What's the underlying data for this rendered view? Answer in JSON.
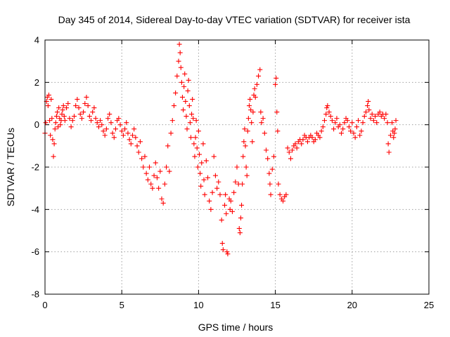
{
  "chart_data": {
    "type": "scatter",
    "title": "Day 345 of 2014, Sidereal Day-to-day VTEC variation (SDTVAR) for receiver ista",
    "xlabel": "GPS time / hours",
    "ylabel": "SDTVAR / TECUs",
    "xlim": [
      0,
      25
    ],
    "ylim": [
      -8,
      4
    ],
    "xticks": [
      0,
      5,
      10,
      15,
      20,
      25
    ],
    "yticks": [
      -8,
      -6,
      -4,
      -2,
      0,
      2,
      4
    ],
    "xtick_labels": [
      "0",
      "5",
      "10",
      "15",
      "20",
      "25"
    ],
    "ytick_labels": [
      "-8",
      "-6",
      "-4",
      "-2",
      "0",
      "2",
      "4"
    ],
    "grid": true,
    "marker": "plus",
    "series": [
      {
        "name": "SDTVAR",
        "color": "#ff0000",
        "points": [
          [
            0.0,
            -0.4
          ],
          [
            0.05,
            0.1
          ],
          [
            0.1,
            1.1
          ],
          [
            0.15,
            1.3
          ],
          [
            0.2,
            0.9
          ],
          [
            0.25,
            1.4
          ],
          [
            0.3,
            0.2
          ],
          [
            0.35,
            -0.5
          ],
          [
            0.4,
            1.2
          ],
          [
            0.45,
            0.3
          ],
          [
            0.5,
            -0.7
          ],
          [
            0.55,
            -1.5
          ],
          [
            0.6,
            -0.9
          ],
          [
            0.65,
            -0.2
          ],
          [
            0.7,
            0.1
          ],
          [
            0.75,
            0.4
          ],
          [
            0.8,
            0.6
          ],
          [
            0.85,
            -0.1
          ],
          [
            0.9,
            0.8
          ],
          [
            0.95,
            0.3
          ],
          [
            1.0,
            0.0
          ],
          [
            1.05,
            0.2
          ],
          [
            1.1,
            0.5
          ],
          [
            1.15,
            0.7
          ],
          [
            1.2,
            0.9
          ],
          [
            1.25,
            0.4
          ],
          [
            1.3,
            0.2
          ],
          [
            1.4,
            0.8
          ],
          [
            1.5,
            1.0
          ],
          [
            1.6,
            0.3
          ],
          [
            1.7,
            -0.1
          ],
          [
            1.8,
            0.2
          ],
          [
            1.9,
            0.4
          ],
          [
            2.0,
            0.9
          ],
          [
            2.1,
            1.2
          ],
          [
            2.2,
            0.8
          ],
          [
            2.3,
            0.5
          ],
          [
            2.4,
            0.3
          ],
          [
            2.5,
            0.6
          ],
          [
            2.6,
            1.0
          ],
          [
            2.7,
            1.3
          ],
          [
            2.8,
            0.9
          ],
          [
            2.9,
            0.4
          ],
          [
            3.0,
            0.2
          ],
          [
            3.1,
            0.6
          ],
          [
            3.2,
            0.8
          ],
          [
            3.3,
            0.3
          ],
          [
            3.4,
            0.1
          ],
          [
            3.5,
            -0.1
          ],
          [
            3.6,
            0.2
          ],
          [
            3.7,
            0.0
          ],
          [
            3.8,
            -0.3
          ],
          [
            3.9,
            -0.5
          ],
          [
            4.0,
            -0.2
          ],
          [
            4.1,
            0.3
          ],
          [
            4.2,
            0.5
          ],
          [
            4.3,
            0.1
          ],
          [
            4.4,
            -0.4
          ],
          [
            4.5,
            -0.6
          ],
          [
            4.6,
            -0.2
          ],
          [
            4.7,
            0.2
          ],
          [
            4.8,
            0.3
          ],
          [
            4.9,
            0.0
          ],
          [
            5.0,
            -0.3
          ],
          [
            5.1,
            -0.5
          ],
          [
            5.2,
            -0.2
          ],
          [
            5.3,
            0.1
          ],
          [
            5.4,
            -0.4
          ],
          [
            5.5,
            -0.7
          ],
          [
            5.6,
            -0.9
          ],
          [
            5.7,
            -0.5
          ],
          [
            5.8,
            -0.2
          ],
          [
            5.9,
            -0.6
          ],
          [
            6.0,
            -1.0
          ],
          [
            6.1,
            -1.3
          ],
          [
            6.2,
            -0.8
          ],
          [
            6.3,
            -1.6
          ],
          [
            6.4,
            -2.0
          ],
          [
            6.5,
            -1.5
          ],
          [
            6.6,
            -2.3
          ],
          [
            6.7,
            -2.6
          ],
          [
            6.8,
            -2.0
          ],
          [
            6.9,
            -2.8
          ],
          [
            7.0,
            -3.0
          ],
          [
            7.1,
            -2.4
          ],
          [
            7.2,
            -1.8
          ],
          [
            7.3,
            -2.5
          ],
          [
            7.4,
            -3.0
          ],
          [
            7.5,
            -2.2
          ],
          [
            7.6,
            -3.5
          ],
          [
            7.7,
            -3.7
          ],
          [
            7.8,
            -2.8
          ],
          [
            7.9,
            -2.0
          ],
          [
            8.0,
            -1.0
          ],
          [
            8.1,
            -2.2
          ],
          [
            8.2,
            -0.4
          ],
          [
            8.3,
            0.2
          ],
          [
            8.4,
            0.9
          ],
          [
            8.5,
            1.5
          ],
          [
            8.6,
            2.3
          ],
          [
            8.7,
            3.0
          ],
          [
            8.75,
            3.8
          ],
          [
            8.8,
            3.4
          ],
          [
            8.85,
            2.7
          ],
          [
            8.9,
            2.0
          ],
          [
            8.95,
            1.3
          ],
          [
            9.0,
            0.7
          ],
          [
            9.05,
            1.8
          ],
          [
            9.1,
            2.4
          ],
          [
            9.15,
            1.1
          ],
          [
            9.2,
            0.4
          ],
          [
            9.25,
            -0.2
          ],
          [
            9.3,
            1.6
          ],
          [
            9.35,
            2.1
          ],
          [
            9.4,
            0.9
          ],
          [
            9.45,
            0.1
          ],
          [
            9.5,
            -0.6
          ],
          [
            9.55,
            0.5
          ],
          [
            9.6,
            1.2
          ],
          [
            9.65,
            0.3
          ],
          [
            9.7,
            -0.9
          ],
          [
            9.75,
            -1.5
          ],
          [
            9.8,
            -0.6
          ],
          [
            9.85,
            0.2
          ],
          [
            9.9,
            -1.1
          ],
          [
            9.95,
            -2.0
          ],
          [
            10.0,
            -0.3
          ],
          [
            10.05,
            -1.4
          ],
          [
            10.1,
            -2.3
          ],
          [
            10.15,
            -2.9
          ],
          [
            10.2,
            -1.8
          ],
          [
            10.3,
            -0.9
          ],
          [
            10.35,
            -2.6
          ],
          [
            10.4,
            -3.3
          ],
          [
            10.5,
            -1.7
          ],
          [
            10.6,
            -2.5
          ],
          [
            10.7,
            -3.6
          ],
          [
            10.8,
            -4.0
          ],
          [
            10.9,
            -3.2
          ],
          [
            11.0,
            -1.5
          ],
          [
            11.1,
            -2.4
          ],
          [
            11.2,
            -3.0
          ],
          [
            11.3,
            -2.7
          ],
          [
            11.4,
            -3.3
          ],
          [
            11.5,
            -4.5
          ],
          [
            11.55,
            -5.6
          ],
          [
            11.6,
            -5.9
          ],
          [
            11.7,
            -3.8
          ],
          [
            11.75,
            -3.3
          ],
          [
            11.8,
            -4.2
          ],
          [
            11.85,
            -6.0
          ],
          [
            11.9,
            -6.1
          ],
          [
            12.0,
            -3.5
          ],
          [
            12.05,
            -4.0
          ],
          [
            12.1,
            -3.6
          ],
          [
            12.2,
            -4.1
          ],
          [
            12.3,
            -3.2
          ],
          [
            12.4,
            -2.7
          ],
          [
            12.5,
            -2.0
          ],
          [
            12.6,
            -2.8
          ],
          [
            12.65,
            -4.9
          ],
          [
            12.7,
            -5.1
          ],
          [
            12.75,
            -4.4
          ],
          [
            12.8,
            -3.8
          ],
          [
            12.85,
            -2.8
          ],
          [
            12.9,
            -1.5
          ],
          [
            12.95,
            -0.8
          ],
          [
            13.0,
            -0.2
          ],
          [
            13.05,
            -1.0
          ],
          [
            13.1,
            -2.0
          ],
          [
            13.15,
            -2.4
          ],
          [
            13.2,
            -0.3
          ],
          [
            13.25,
            0.3
          ],
          [
            13.3,
            0.9
          ],
          [
            13.35,
            1.2
          ],
          [
            13.4,
            0.7
          ],
          [
            13.45,
            0.1
          ],
          [
            13.5,
            -0.8
          ],
          [
            13.55,
            0.6
          ],
          [
            13.6,
            1.4
          ],
          [
            13.65,
            1.7
          ],
          [
            13.7,
            1.3
          ],
          [
            13.8,
            1.9
          ],
          [
            13.9,
            2.3
          ],
          [
            14.0,
            2.6
          ],
          [
            14.05,
            0.6
          ],
          [
            14.1,
            0.1
          ],
          [
            14.2,
            0.3
          ],
          [
            14.3,
            -0.4
          ],
          [
            14.4,
            -1.2
          ],
          [
            14.5,
            -1.6
          ],
          [
            14.6,
            -2.3
          ],
          [
            14.65,
            -2.8
          ],
          [
            14.7,
            -3.3
          ],
          [
            14.8,
            -2.1
          ],
          [
            14.9,
            -1.5
          ],
          [
            15.0,
            1.9
          ],
          [
            15.05,
            2.2
          ],
          [
            15.1,
            0.6
          ],
          [
            15.15,
            -0.3
          ],
          [
            15.2,
            -2.8
          ],
          [
            15.3,
            -3.3
          ],
          [
            15.4,
            -3.5
          ],
          [
            15.5,
            -3.6
          ],
          [
            15.6,
            -3.4
          ],
          [
            15.7,
            -3.3
          ],
          [
            15.8,
            -1.1
          ],
          [
            15.9,
            -1.3
          ],
          [
            16.0,
            -1.6
          ],
          [
            16.1,
            -1.2
          ],
          [
            16.2,
            -1.0
          ],
          [
            16.3,
            -0.9
          ],
          [
            16.4,
            -1.1
          ],
          [
            16.5,
            -0.8
          ],
          [
            16.6,
            -0.7
          ],
          [
            16.7,
            -0.9
          ],
          [
            16.8,
            -0.7
          ],
          [
            16.9,
            -0.5
          ],
          [
            17.0,
            -0.6
          ],
          [
            17.1,
            -0.8
          ],
          [
            17.2,
            -0.6
          ],
          [
            17.3,
            -0.5
          ],
          [
            17.4,
            -0.6
          ],
          [
            17.5,
            -0.8
          ],
          [
            17.6,
            -0.7
          ],
          [
            17.7,
            -0.4
          ],
          [
            17.8,
            -0.5
          ],
          [
            17.9,
            -0.6
          ],
          [
            18.0,
            -0.3
          ],
          [
            18.1,
            -0.1
          ],
          [
            18.2,
            0.2
          ],
          [
            18.3,
            0.5
          ],
          [
            18.35,
            0.8
          ],
          [
            18.4,
            0.9
          ],
          [
            18.5,
            0.6
          ],
          [
            18.6,
            0.4
          ],
          [
            18.7,
            0.2
          ],
          [
            18.8,
            -0.2
          ],
          [
            18.9,
            0.1
          ],
          [
            19.0,
            0.3
          ],
          [
            19.1,
            -0.1
          ],
          [
            19.2,
            0.0
          ],
          [
            19.3,
            -0.4
          ],
          [
            19.4,
            -0.2
          ],
          [
            19.5,
            0.1
          ],
          [
            19.6,
            0.3
          ],
          [
            19.7,
            0.2
          ],
          [
            19.8,
            -0.1
          ],
          [
            19.9,
            -0.3
          ],
          [
            20.0,
            0.1
          ],
          [
            20.1,
            -0.4
          ],
          [
            20.2,
            -0.6
          ],
          [
            20.3,
            -0.1
          ],
          [
            20.4,
            0.2
          ],
          [
            20.5,
            -0.5
          ],
          [
            20.6,
            -0.3
          ],
          [
            20.7,
            0.1
          ],
          [
            20.8,
            0.4
          ],
          [
            20.9,
            0.6
          ],
          [
            21.0,
            0.9
          ],
          [
            21.05,
            1.1
          ],
          [
            21.1,
            0.7
          ],
          [
            21.2,
            0.3
          ],
          [
            21.3,
            0.5
          ],
          [
            21.4,
            0.2
          ],
          [
            21.5,
            0.4
          ],
          [
            21.6,
            0.1
          ],
          [
            21.7,
            0.5
          ],
          [
            21.8,
            0.6
          ],
          [
            21.9,
            0.4
          ],
          [
            22.0,
            0.5
          ],
          [
            22.1,
            0.3
          ],
          [
            22.2,
            0.5
          ],
          [
            22.3,
            0.1
          ],
          [
            22.35,
            -0.9
          ],
          [
            22.4,
            -1.3
          ],
          [
            22.5,
            -0.5
          ],
          [
            22.6,
            0.1
          ],
          [
            22.65,
            -0.3
          ],
          [
            22.7,
            -0.6
          ],
          [
            22.75,
            -0.4
          ],
          [
            22.8,
            -0.2
          ],
          [
            22.85,
            0.2
          ]
        ]
      }
    ]
  }
}
